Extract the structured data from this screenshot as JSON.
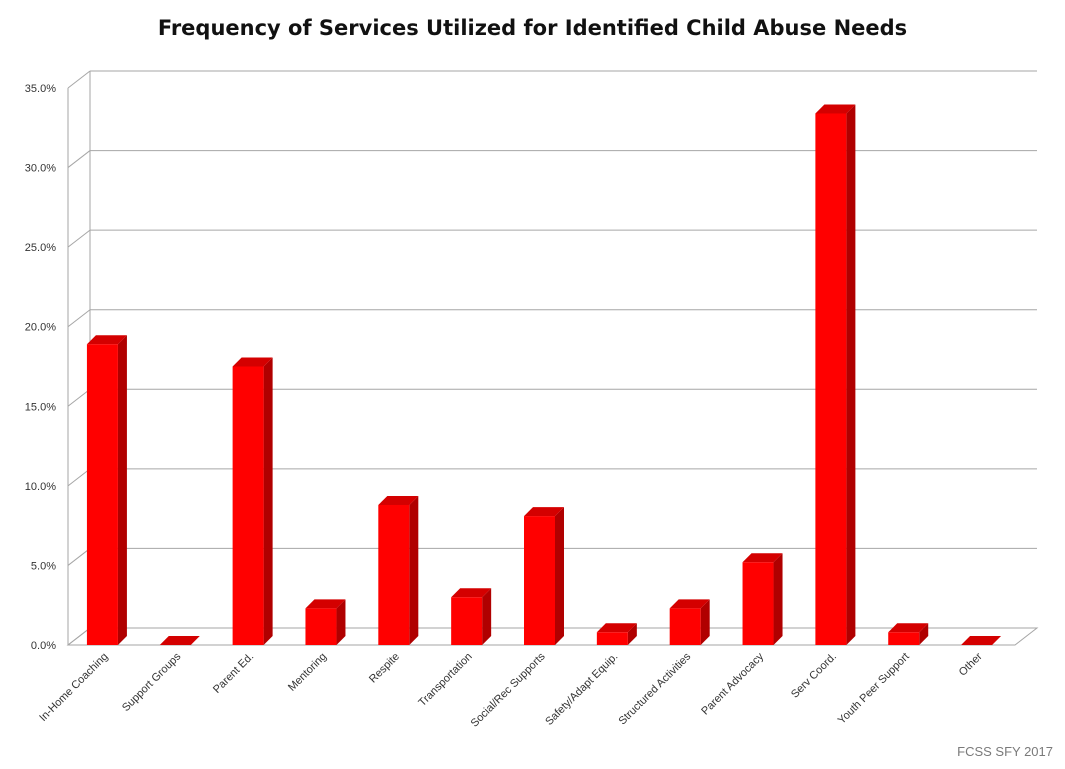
{
  "chart_data": {
    "type": "bar",
    "title": "Frequency of Services Utilized for Identified Child Abuse Needs",
    "xlabel": "",
    "ylabel": "",
    "categories": [
      "In-Home Coaching",
      "Support Groups",
      "Parent Ed.",
      "Mentoring",
      "Respite",
      "Transportation",
      "Social/Rec Supports",
      "Safety/Adapt Equip.",
      "Structured Activities",
      "Parent Advocacy",
      "Serv Coord.",
      "Youth Peer Support",
      "Other"
    ],
    "series": [
      {
        "values": [
          18.9,
          0.0,
          17.5,
          2.3,
          8.8,
          3.0,
          8.1,
          0.8,
          2.3,
          5.2,
          33.4,
          0.8,
          0.0
        ]
      }
    ],
    "yticks": [
      "0.0%",
      "5.0%",
      "10.0%",
      "15.0%",
      "20.0%",
      "25.0%",
      "30.0%",
      "35.0%"
    ],
    "ylim": [
      0,
      35
    ],
    "grid": true,
    "legend": "none",
    "colors": {
      "bar_front": "#ff0000",
      "bar_side": "#b00000",
      "bar_top": "#d40000",
      "grid": "#a6a6a6"
    }
  },
  "footer": {
    "source": "FCSS SFY 2017"
  }
}
